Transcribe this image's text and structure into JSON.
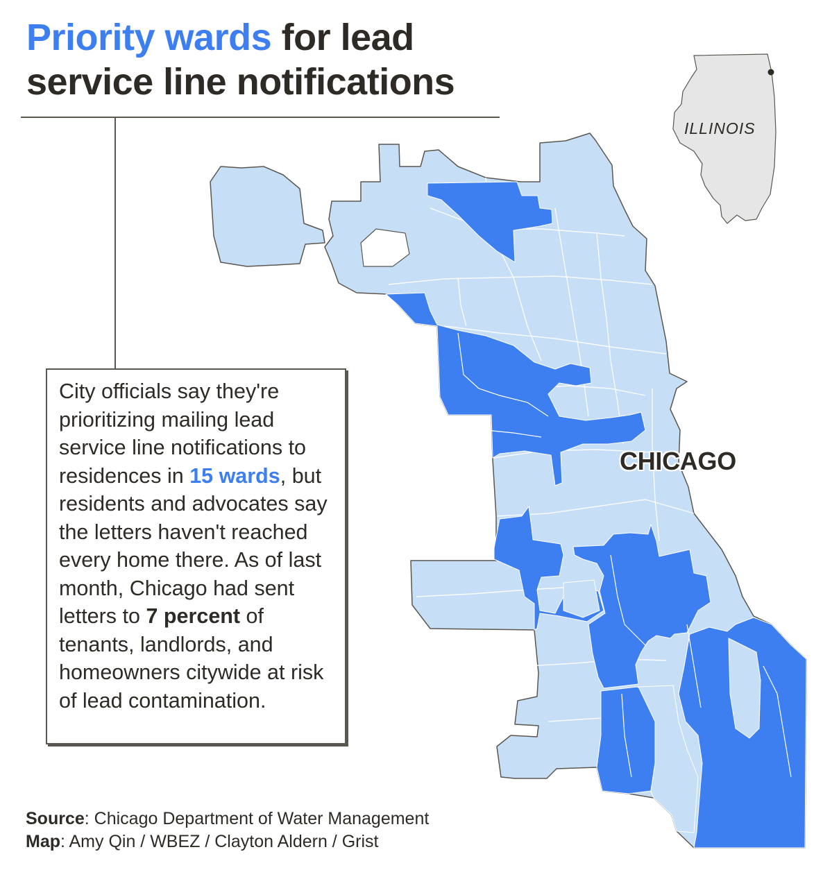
{
  "title": {
    "highlight": "Priority wards",
    "line1_rest": " for lead",
    "line2": "service line notifications"
  },
  "callout": {
    "text_1": "City officials say they're prioritizing mailing lead service line notifications to residences in ",
    "highlight_wards": "15 wards",
    "text_2": ", but residents and advocates say the letters haven't reached every home there. As of last month, Chicago had sent letters to ",
    "bold_percent": "7 percent",
    "text_3": " of tenants, landlords, and homeowners citywide at risk of lead contamination."
  },
  "map": {
    "city_label": "CHICAGO",
    "inset_label": "ILLINOIS",
    "colors": {
      "priority_ward": "#3d7ff0",
      "other_ward": "#c6def6",
      "outline": "#5a5650",
      "inset_state": "#e6e6e6"
    }
  },
  "source": {
    "label": "Source",
    "text": ": Chicago Department of Water Management"
  },
  "credit": {
    "label": "Map",
    "text": ": Amy Qin / WBEZ / Clayton Aldern / Grist"
  }
}
